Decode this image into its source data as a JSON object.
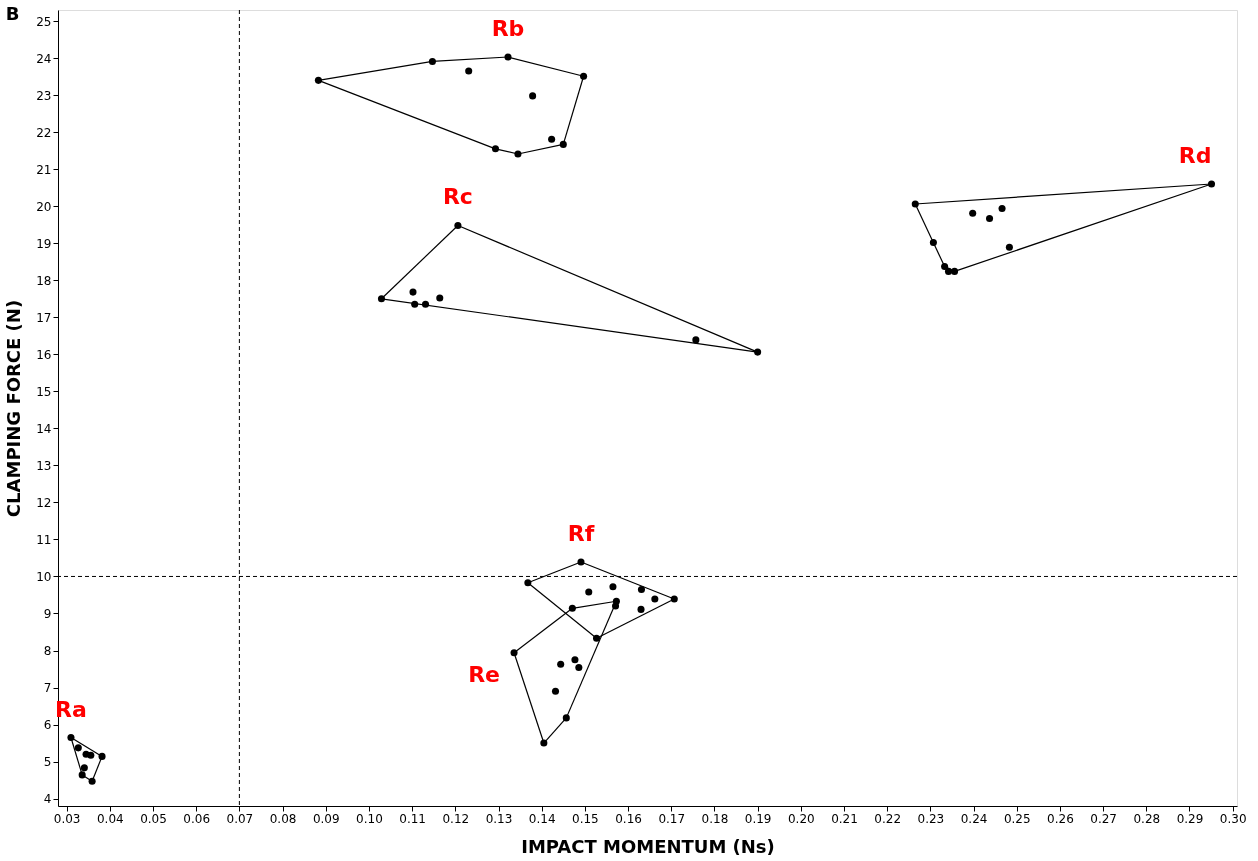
{
  "chart_data": {
    "type": "scatter",
    "title": "B",
    "xlabel": "IMPACT MOMENTUM (Ns)",
    "ylabel": "CLAMPING FORCE (N)",
    "xlim": [
      0.028,
      0.301
    ],
    "ylim": [
      3.8,
      25.3
    ],
    "xticks": [
      {
        "value": 0.03,
        "label": "0.03"
      },
      {
        "value": 0.04,
        "label": "0.04"
      },
      {
        "value": 0.05,
        "label": "0.05"
      },
      {
        "value": 0.06,
        "label": "0.06"
      },
      {
        "value": 0.07,
        "label": "0.07"
      },
      {
        "value": 0.08,
        "label": "0.08"
      },
      {
        "value": 0.09,
        "label": "0.09"
      },
      {
        "value": 0.1,
        "label": "0.10"
      },
      {
        "value": 0.11,
        "label": "0.11"
      },
      {
        "value": 0.12,
        "label": "0.12"
      },
      {
        "value": 0.13,
        "label": "0.13"
      },
      {
        "value": 0.14,
        "label": "0.14"
      },
      {
        "value": 0.15,
        "label": "0.15"
      },
      {
        "value": 0.16,
        "label": "0.16"
      },
      {
        "value": 0.17,
        "label": "0.17"
      },
      {
        "value": 0.18,
        "label": "0.18"
      },
      {
        "value": 0.19,
        "label": "0.19"
      },
      {
        "value": 0.2,
        "label": "0.20"
      },
      {
        "value": 0.21,
        "label": "0.21"
      },
      {
        "value": 0.22,
        "label": "0.22"
      },
      {
        "value": 0.23,
        "label": "0.23"
      },
      {
        "value": 0.24,
        "label": "0.24"
      },
      {
        "value": 0.25,
        "label": "0.25"
      },
      {
        "value": 0.26,
        "label": "0.26"
      },
      {
        "value": 0.27,
        "label": "0.27"
      },
      {
        "value": 0.28,
        "label": "0.28"
      },
      {
        "value": 0.29,
        "label": "0.29"
      },
      {
        "value": 0.3,
        "label": "0.30"
      }
    ],
    "yticks": [
      4,
      5,
      6,
      7,
      8,
      9,
      10,
      11,
      12,
      13,
      14,
      15,
      16,
      17,
      18,
      19,
      20,
      21,
      22,
      23,
      24,
      25
    ],
    "grid": false,
    "legend": false,
    "series": [
      {
        "name": "Ra",
        "marker": "circle",
        "color": "#000000",
        "x": [
          0.031,
          0.0327,
          0.0345,
          0.0356,
          0.0382,
          0.0341,
          0.0336,
          0.0359
        ],
        "values": [
          5.65,
          5.37,
          5.2,
          5.17,
          5.14,
          4.83,
          4.64,
          4.47
        ]
      },
      {
        "type": "line",
        "color": "#000000",
        "x": [
          0.031,
          0.0382
        ],
        "values": [
          5.65,
          5.14
        ]
      },
      {
        "type": "line",
        "color": "#000000",
        "x": [
          0.0359,
          0.0382
        ],
        "values": [
          4.47,
          5.14
        ]
      },
      {
        "type": "line",
        "color": "#000000",
        "x": [
          0.0336,
          0.0359
        ],
        "values": [
          4.64,
          4.47
        ]
      },
      {
        "type": "line",
        "color": "#000000",
        "x": [
          0.031,
          0.0336
        ],
        "values": [
          5.65,
          4.64
        ]
      },
      {
        "name": "Rb",
        "marker": "circle",
        "color": "#000000",
        "x": [
          0.0883,
          0.1147,
          0.1231,
          0.1322,
          0.1497,
          0.1379,
          0.1423,
          0.145,
          0.1293,
          0.1345
        ],
        "values": [
          23.4,
          23.91,
          23.65,
          24.03,
          23.51,
          22.98,
          21.81,
          21.67,
          21.55,
          21.41
        ]
      },
      {
        "type": "line",
        "color": "#000000",
        "x": [
          0.0883,
          0.1147
        ],
        "values": [
          23.4,
          23.91
        ]
      },
      {
        "type": "line",
        "color": "#000000",
        "x": [
          0.1147,
          0.1322
        ],
        "values": [
          23.91,
          24.03
        ]
      },
      {
        "type": "line",
        "color": "#000000",
        "x": [
          0.1322,
          0.1497
        ],
        "values": [
          24.03,
          23.51
        ]
      },
      {
        "type": "line",
        "color": "#000000",
        "x": [
          0.145,
          0.1497
        ],
        "values": [
          21.67,
          23.51
        ]
      },
      {
        "type": "line",
        "color": "#000000",
        "x": [
          0.1345,
          0.145
        ],
        "values": [
          21.41,
          21.67
        ]
      },
      {
        "type": "line",
        "color": "#000000",
        "x": [
          0.1293,
          0.1345
        ],
        "values": [
          21.55,
          21.41
        ]
      },
      {
        "type": "line",
        "color": "#000000",
        "x": [
          0.0883,
          0.1293
        ],
        "values": [
          23.4,
          21.55
        ]
      },
      {
        "name": "Rc",
        "marker": "circle",
        "color": "#000000",
        "x": [
          0.1206,
          0.1029,
          0.1102,
          0.1106,
          0.1131,
          0.1164,
          0.1757,
          0.19
        ],
        "values": [
          19.48,
          17.5,
          17.68,
          17.35,
          17.35,
          17.52,
          16.39,
          16.06
        ]
      },
      {
        "type": "line",
        "color": "#000000",
        "x": [
          0.1029,
          0.1206
        ],
        "values": [
          17.5,
          19.48
        ]
      },
      {
        "type": "line",
        "color": "#000000",
        "x": [
          0.1206,
          0.19
        ],
        "values": [
          19.48,
          16.06
        ]
      },
      {
        "type": "line",
        "color": "#000000",
        "x": [
          0.1029,
          0.19
        ],
        "values": [
          17.5,
          16.06
        ]
      },
      {
        "name": "Rd",
        "marker": "circle",
        "color": "#000000",
        "x": [
          0.2265,
          0.2951,
          0.2398,
          0.2437,
          0.2466,
          0.2307,
          0.2483,
          0.2333,
          0.2356,
          0.2342
        ],
        "values": [
          20.06,
          20.6,
          19.81,
          19.67,
          19.94,
          19.02,
          18.89,
          18.37,
          18.24,
          18.24
        ]
      },
      {
        "type": "line",
        "color": "#000000",
        "x": [
          0.2265,
          0.2951
        ],
        "values": [
          20.06,
          20.6
        ]
      },
      {
        "type": "line",
        "color": "#000000",
        "x": [
          0.2356,
          0.2951
        ],
        "values": [
          18.24,
          20.6
        ]
      },
      {
        "type": "line",
        "color": "#000000",
        "x": [
          0.2333,
          0.2356
        ],
        "values": [
          18.37,
          18.24
        ]
      },
      {
        "type": "line",
        "color": "#000000",
        "x": [
          0.2265,
          0.2333
        ],
        "values": [
          20.06,
          18.37
        ]
      },
      {
        "name": "Rf",
        "marker": "circle",
        "color": "#000000",
        "x": [
          0.1491,
          0.1368,
          0.1509,
          0.1565,
          0.1631,
          0.1662,
          0.1707,
          0.163,
          0.1527
        ],
        "values": [
          10.39,
          9.83,
          9.58,
          9.72,
          9.65,
          9.39,
          9.39,
          9.11,
          8.33
        ]
      },
      {
        "type": "line",
        "color": "#000000",
        "x": [
          0.1368,
          0.1491
        ],
        "values": [
          9.83,
          10.39
        ]
      },
      {
        "type": "line",
        "color": "#000000",
        "x": [
          0.1491,
          0.1707
        ],
        "values": [
          10.39,
          9.39
        ]
      },
      {
        "type": "line",
        "color": "#000000",
        "x": [
          0.1527,
          0.1707
        ],
        "values": [
          8.33,
          9.39
        ]
      },
      {
        "type": "line",
        "color": "#000000",
        "x": [
          0.1368,
          0.1527
        ],
        "values": [
          9.83,
          8.33
        ]
      },
      {
        "name": "Re",
        "marker": "circle",
        "color": "#000000",
        "x": [
          0.1336,
          0.1471,
          0.1573,
          0.1571,
          0.1444,
          0.1477,
          0.1486,
          0.1432,
          0.1457,
          0.1405
        ],
        "values": [
          7.94,
          9.14,
          9.33,
          9.2,
          7.63,
          7.75,
          7.54,
          6.9,
          6.18,
          5.5
        ]
      },
      {
        "type": "line",
        "color": "#000000",
        "x": [
          0.1336,
          0.1471
        ],
        "values": [
          7.94,
          9.14
        ]
      },
      {
        "type": "line",
        "color": "#000000",
        "x": [
          0.1471,
          0.1573
        ],
        "values": [
          9.14,
          9.33
        ]
      },
      {
        "type": "line",
        "color": "#000000",
        "x": [
          0.1457,
          0.1573
        ],
        "values": [
          6.18,
          9.33
        ]
      },
      {
        "type": "line",
        "color": "#000000",
        "x": [
          0.1405,
          0.1457
        ],
        "values": [
          5.5,
          6.18
        ]
      },
      {
        "type": "line",
        "color": "#000000",
        "x": [
          0.1336,
          0.1405
        ],
        "values": [
          7.94,
          5.5
        ]
      }
    ],
    "ref_lines": [
      {
        "axis": "x",
        "value": 0.07,
        "line_style": "dashed",
        "color": "#000000"
      },
      {
        "axis": "y",
        "value": 10,
        "line_style": "dashed",
        "color": "#000000"
      }
    ]
  }
}
